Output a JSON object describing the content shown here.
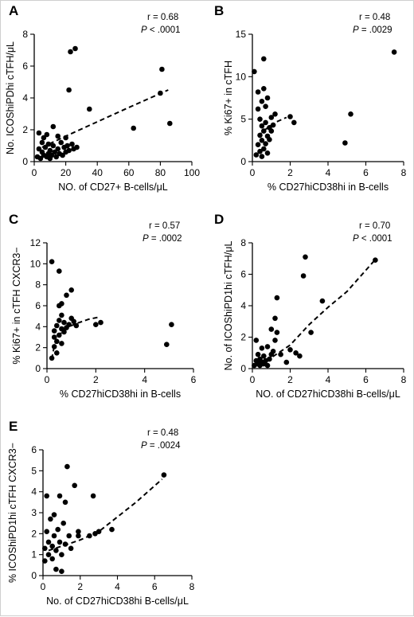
{
  "chart_data": [
    {
      "id": "A",
      "type": "scatter",
      "panel_label": "A",
      "stats": {
        "r": "r = 0.68",
        "p_prefix": "P",
        "p_value": " < .0001"
      },
      "xlabel": "NO. of CD27+ B-cells/μL",
      "ylabel": "No. ICOShiPDhi cTFH/μL",
      "xlim": [
        0,
        100
      ],
      "ylim": [
        0,
        8
      ],
      "xticks": [
        0,
        20,
        40,
        60,
        80,
        100
      ],
      "yticks": [
        0,
        2,
        4,
        6,
        8
      ],
      "points": [
        [
          2,
          0.3
        ],
        [
          3,
          0.8
        ],
        [
          3,
          1.8
        ],
        [
          4,
          0.2
        ],
        [
          5,
          0.6
        ],
        [
          5,
          1.2
        ],
        [
          6,
          0.4
        ],
        [
          6,
          1.5
        ],
        [
          7,
          0.9
        ],
        [
          8,
          0.3
        ],
        [
          8,
          1.7
        ],
        [
          9,
          0.5
        ],
        [
          9,
          1.1
        ],
        [
          10,
          0.2
        ],
        [
          10,
          0.7
        ],
        [
          11,
          0.4
        ],
        [
          12,
          1.0
        ],
        [
          12,
          2.2
        ],
        [
          13,
          0.6
        ],
        [
          14,
          0.3
        ],
        [
          15,
          0.8
        ],
        [
          15,
          1.6
        ],
        [
          16,
          0.5
        ],
        [
          17,
          1.2
        ],
        [
          18,
          0.4
        ],
        [
          19,
          0.9
        ],
        [
          20,
          0.6
        ],
        [
          20,
          1.5
        ],
        [
          21,
          1.0
        ],
        [
          22,
          0.7
        ],
        [
          22,
          4.5
        ],
        [
          23,
          6.9
        ],
        [
          24,
          1.1
        ],
        [
          25,
          0.8
        ],
        [
          26,
          7.1
        ],
        [
          27,
          0.9
        ],
        [
          35,
          3.3
        ],
        [
          63,
          2.1
        ],
        [
          80,
          4.3
        ],
        [
          81,
          5.8
        ],
        [
          86,
          2.4
        ]
      ],
      "trend": [
        [
          5,
          0.9
        ],
        [
          20,
          1.6
        ],
        [
          40,
          2.5
        ],
        [
          60,
          3.4
        ],
        [
          85,
          4.5
        ]
      ]
    },
    {
      "id": "B",
      "type": "scatter",
      "panel_label": "B",
      "stats": {
        "r": "r = 0.48",
        "p_prefix": "P",
        "p_value": " = .0029"
      },
      "xlabel": "% CD27hiCD38hi in B-cells",
      "ylabel": "% Ki67+ in cTFH",
      "xlim": [
        0,
        8
      ],
      "ylim": [
        0,
        15
      ],
      "xticks": [
        0,
        2,
        4,
        6,
        8
      ],
      "yticks": [
        0,
        5,
        10,
        15
      ],
      "points": [
        [
          0.1,
          10.6
        ],
        [
          0.2,
          0.8
        ],
        [
          0.3,
          2.0
        ],
        [
          0.3,
          6.2
        ],
        [
          0.3,
          8.2
        ],
        [
          0.4,
          1.2
        ],
        [
          0.4,
          3.1
        ],
        [
          0.4,
          5.0
        ],
        [
          0.5,
          0.6
        ],
        [
          0.5,
          2.5
        ],
        [
          0.5,
          4.2
        ],
        [
          0.5,
          7.1
        ],
        [
          0.6,
          1.5
        ],
        [
          0.6,
          3.6
        ],
        [
          0.6,
          8.6
        ],
        [
          0.6,
          12.1
        ],
        [
          0.7,
          2.1
        ],
        [
          0.7,
          4.6
        ],
        [
          0.7,
          6.5
        ],
        [
          0.8,
          1.0
        ],
        [
          0.8,
          3.0
        ],
        [
          0.8,
          7.5
        ],
        [
          0.9,
          2.6
        ],
        [
          0.9,
          4.0
        ],
        [
          1.0,
          5.2
        ],
        [
          1.0,
          3.6
        ],
        [
          1.1,
          4.3
        ],
        [
          1.2,
          5.6
        ],
        [
          2.0,
          5.3
        ],
        [
          2.2,
          4.6
        ],
        [
          4.9,
          2.2
        ],
        [
          5.2,
          5.6
        ],
        [
          7.5,
          12.9
        ]
      ],
      "trend": [
        [
          0.3,
          3.0
        ],
        [
          0.7,
          3.8
        ],
        [
          1.2,
          4.6
        ],
        [
          1.8,
          5.2
        ]
      ]
    },
    {
      "id": "C",
      "type": "scatter",
      "panel_label": "C",
      "stats": {
        "r": "r = 0.57",
        "p_prefix": "P",
        "p_value": " = .0002"
      },
      "xlabel": "% CD27hiCD38hi in B-cells",
      "ylabel": "% Ki67+ in cTFH CXCR3−",
      "xlim": [
        0,
        6
      ],
      "ylim": [
        0,
        12
      ],
      "xticks": [
        0,
        2,
        4,
        6
      ],
      "yticks": [
        0,
        2,
        4,
        6,
        8,
        10,
        12
      ],
      "points": [
        [
          0.2,
          1.0
        ],
        [
          0.2,
          10.2
        ],
        [
          0.3,
          2.1
        ],
        [
          0.3,
          3.0
        ],
        [
          0.3,
          3.6
        ],
        [
          0.4,
          1.5
        ],
        [
          0.4,
          2.6
        ],
        [
          0.4,
          4.1
        ],
        [
          0.5,
          3.2
        ],
        [
          0.5,
          4.6
        ],
        [
          0.5,
          6.0
        ],
        [
          0.5,
          9.3
        ],
        [
          0.6,
          2.4
        ],
        [
          0.6,
          3.8
        ],
        [
          0.6,
          5.1
        ],
        [
          0.6,
          6.2
        ],
        [
          0.7,
          3.5
        ],
        [
          0.7,
          4.4
        ],
        [
          0.8,
          3.9
        ],
        [
          0.8,
          7.0
        ],
        [
          0.9,
          4.2
        ],
        [
          1.0,
          4.8
        ],
        [
          1.0,
          7.5
        ],
        [
          1.1,
          4.5
        ],
        [
          1.2,
          4.1
        ],
        [
          2.0,
          4.2
        ],
        [
          2.2,
          4.4
        ],
        [
          4.9,
          2.3
        ],
        [
          5.1,
          4.2
        ]
      ],
      "trend": [
        [
          0.2,
          0.9
        ],
        [
          0.3,
          2.2
        ],
        [
          0.5,
          3.2
        ],
        [
          0.8,
          3.9
        ],
        [
          1.2,
          4.3
        ],
        [
          1.7,
          4.7
        ],
        [
          2.1,
          4.9
        ]
      ]
    },
    {
      "id": "D",
      "type": "scatter",
      "panel_label": "D",
      "stats": {
        "r": "r = 0.70",
        "p_prefix": "P",
        "p_value": " < .0001"
      },
      "xlabel": "NO. of CD27hiCD38hi B-cells/μL",
      "ylabel": "No. of ICOShiPD1hi cTFH/μL",
      "xlim": [
        0,
        8
      ],
      "ylim": [
        0,
        8
      ],
      "xticks": [
        0,
        2,
        4,
        6,
        8
      ],
      "yticks": [
        0,
        2,
        4,
        6,
        8
      ],
      "points": [
        [
          0.1,
          0.2
        ],
        [
          0.2,
          0.5
        ],
        [
          0.2,
          1.8
        ],
        [
          0.3,
          0.3
        ],
        [
          0.3,
          0.9
        ],
        [
          0.4,
          0.2
        ],
        [
          0.4,
          0.6
        ],
        [
          0.5,
          0.4
        ],
        [
          0.5,
          1.3
        ],
        [
          0.6,
          0.3
        ],
        [
          0.6,
          0.8
        ],
        [
          0.7,
          0.5
        ],
        [
          0.8,
          0.2
        ],
        [
          0.8,
          1.4
        ],
        [
          0.9,
          0.6
        ],
        [
          1.0,
          2.5
        ],
        [
          1.0,
          0.9
        ],
        [
          1.1,
          1.1
        ],
        [
          1.2,
          3.2
        ],
        [
          1.2,
          1.8
        ],
        [
          1.3,
          4.5
        ],
        [
          1.3,
          2.3
        ],
        [
          1.5,
          0.9
        ],
        [
          1.8,
          0.4
        ],
        [
          2.0,
          1.2
        ],
        [
          2.3,
          1.0
        ],
        [
          2.5,
          0.8
        ],
        [
          2.7,
          5.9
        ],
        [
          2.8,
          7.1
        ],
        [
          3.1,
          2.3
        ],
        [
          3.7,
          4.3
        ],
        [
          6.5,
          6.9
        ]
      ],
      "trend": [
        [
          0.3,
          0.4
        ],
        [
          1.0,
          0.7
        ],
        [
          2.0,
          1.5
        ],
        [
          3.0,
          2.8
        ],
        [
          4.0,
          3.9
        ],
        [
          5.0,
          4.9
        ],
        [
          6.4,
          6.8
        ]
      ]
    },
    {
      "id": "E",
      "type": "scatter",
      "panel_label": "E",
      "stats": {
        "r": "r = 0.48",
        "p_prefix": "P",
        "p_value": " = .0024"
      },
      "xlabel": "No. of CD27hiCD38hi  B-cells/μL",
      "ylabel": "% ICOShiPD1hi cTFH CXCR3−",
      "xlim": [
        0,
        8
      ],
      "ylim": [
        0,
        6
      ],
      "xticks": [
        0,
        2,
        4,
        6,
        8
      ],
      "yticks": [
        0,
        1,
        2,
        3,
        4,
        5,
        6
      ],
      "points": [
        [
          0.1,
          0.7
        ],
        [
          0.1,
          1.3
        ],
        [
          0.2,
          3.8
        ],
        [
          0.2,
          2.1
        ],
        [
          0.3,
          1.0
        ],
        [
          0.3,
          1.6
        ],
        [
          0.4,
          2.7
        ],
        [
          0.5,
          0.8
        ],
        [
          0.5,
          1.4
        ],
        [
          0.6,
          1.9
        ],
        [
          0.6,
          2.9
        ],
        [
          0.7,
          1.2
        ],
        [
          0.7,
          0.3
        ],
        [
          0.8,
          2.2
        ],
        [
          0.9,
          1.6
        ],
        [
          0.9,
          3.8
        ],
        [
          1.0,
          0.2
        ],
        [
          1.0,
          1.0
        ],
        [
          1.1,
          2.5
        ],
        [
          1.2,
          1.5
        ],
        [
          1.2,
          3.5
        ],
        [
          1.3,
          5.2
        ],
        [
          1.4,
          1.9
        ],
        [
          1.5,
          1.3
        ],
        [
          1.7,
          4.3
        ],
        [
          1.9,
          1.9
        ],
        [
          1.9,
          2.1
        ],
        [
          2.5,
          1.9
        ],
        [
          2.7,
          3.8
        ],
        [
          2.8,
          2.0
        ],
        [
          3.0,
          2.1
        ],
        [
          3.7,
          2.2
        ],
        [
          6.5,
          4.8
        ]
      ],
      "trend": [
        [
          0.3,
          1.2
        ],
        [
          1.0,
          1.4
        ],
        [
          2.0,
          1.7
        ],
        [
          3.0,
          2.1
        ],
        [
          4.0,
          2.8
        ],
        [
          5.0,
          3.5
        ],
        [
          6.4,
          4.6
        ]
      ]
    }
  ]
}
